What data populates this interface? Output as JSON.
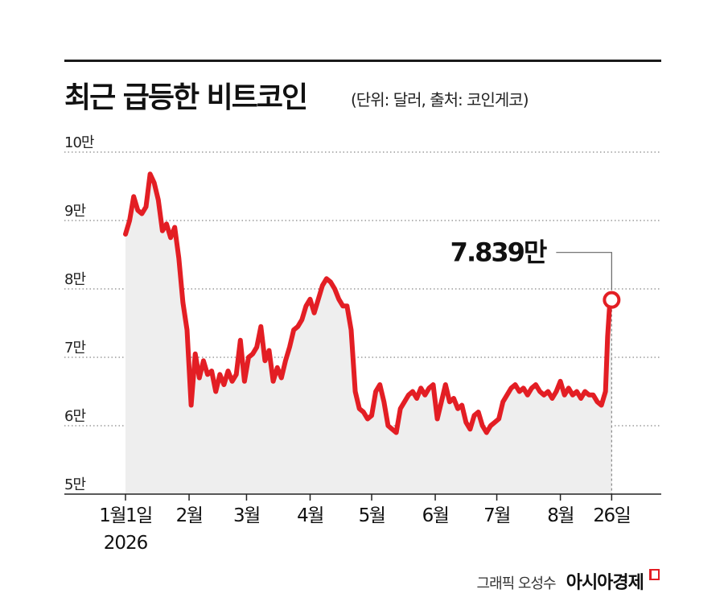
{
  "header": {
    "title": "최근 급등한 비트코인",
    "subtitle": "(단위: 달러, 출처: 코인게코)"
  },
  "chart_data": {
    "type": "line",
    "title": "최근 급등한 비트코인",
    "subtitle": "(단위: 달러, 출처: 코인게코)",
    "ylim": [
      50000,
      100000
    ],
    "y_ticks": [
      {
        "value": 100000,
        "label": "10만"
      },
      {
        "value": 90000,
        "label": "9만"
      },
      {
        "value": 80000,
        "label": "8만"
      },
      {
        "value": 70000,
        "label": "7만"
      },
      {
        "value": 60000,
        "label": "6만"
      },
      {
        "value": 50000,
        "label": "5만"
      }
    ],
    "x_ticks": [
      {
        "date": "2026-01-01",
        "label": "1월1일",
        "sublabel": "2026"
      },
      {
        "date": "2026-02-01",
        "label": "2월"
      },
      {
        "date": "2026-03-01",
        "label": "3월"
      },
      {
        "date": "2026-04-01",
        "label": "4월"
      },
      {
        "date": "2026-05-01",
        "label": "5월"
      },
      {
        "date": "2026-06-01",
        "label": "6월"
      },
      {
        "date": "2026-07-01",
        "label": "7월"
      },
      {
        "date": "2026-08-01",
        "label": "8월"
      },
      {
        "date": "2026-08-26",
        "label": "26일"
      }
    ],
    "grid": "dotted-horizontal",
    "line_color": "#e31e24",
    "area_color": "#eeeeee",
    "annotation": {
      "date": "2026-08-26",
      "value": 78390,
      "label": "7.839만"
    },
    "series": [
      {
        "values": [
          [
            "2026-01-01",
            88000
          ],
          [
            "2026-01-03",
            90000
          ],
          [
            "2026-01-05",
            93500
          ],
          [
            "2026-01-07",
            91500
          ],
          [
            "2026-01-09",
            91000
          ],
          [
            "2026-01-11",
            92000
          ],
          [
            "2026-01-13",
            96800
          ],
          [
            "2026-01-15",
            95500
          ],
          [
            "2026-01-17",
            93000
          ],
          [
            "2026-01-19",
            88500
          ],
          [
            "2026-01-21",
            89500
          ],
          [
            "2026-01-23",
            87500
          ],
          [
            "2026-01-25",
            89000
          ],
          [
            "2026-01-27",
            84500
          ],
          [
            "2026-01-29",
            78000
          ],
          [
            "2026-01-31",
            74000
          ],
          [
            "2026-02-02",
            63000
          ],
          [
            "2026-02-04",
            70500
          ],
          [
            "2026-02-06",
            67000
          ],
          [
            "2026-02-08",
            69500
          ],
          [
            "2026-02-10",
            67500
          ],
          [
            "2026-02-12",
            68000
          ],
          [
            "2026-02-14",
            65000
          ],
          [
            "2026-02-16",
            67500
          ],
          [
            "2026-02-18",
            66000
          ],
          [
            "2026-02-20",
            68000
          ],
          [
            "2026-02-22",
            66500
          ],
          [
            "2026-02-24",
            67500
          ],
          [
            "2026-02-26",
            72500
          ],
          [
            "2026-02-28",
            66500
          ],
          [
            "2026-03-02",
            70000
          ],
          [
            "2026-03-04",
            70500
          ],
          [
            "2026-03-06",
            71500
          ],
          [
            "2026-03-08",
            74500
          ],
          [
            "2026-03-10",
            69500
          ],
          [
            "2026-03-12",
            71000
          ],
          [
            "2026-03-14",
            66500
          ],
          [
            "2026-03-16",
            68500
          ],
          [
            "2026-03-18",
            67000
          ],
          [
            "2026-03-20",
            69500
          ],
          [
            "2026-03-22",
            71500
          ],
          [
            "2026-03-24",
            74000
          ],
          [
            "2026-03-26",
            74500
          ],
          [
            "2026-03-28",
            75500
          ],
          [
            "2026-03-30",
            77500
          ],
          [
            "2026-04-01",
            78500
          ],
          [
            "2026-04-03",
            76500
          ],
          [
            "2026-04-05",
            78500
          ],
          [
            "2026-04-07",
            80500
          ],
          [
            "2026-04-09",
            81500
          ],
          [
            "2026-04-11",
            81000
          ],
          [
            "2026-04-13",
            80000
          ],
          [
            "2026-04-15",
            78500
          ],
          [
            "2026-04-17",
            77500
          ],
          [
            "2026-04-19",
            77500
          ],
          [
            "2026-04-21",
            74000
          ],
          [
            "2026-04-23",
            65000
          ],
          [
            "2026-04-25",
            62500
          ],
          [
            "2026-04-27",
            62000
          ],
          [
            "2026-04-29",
            61000
          ],
          [
            "2026-05-01",
            61500
          ],
          [
            "2026-05-03",
            65000
          ],
          [
            "2026-05-05",
            66000
          ],
          [
            "2026-05-07",
            63500
          ],
          [
            "2026-05-09",
            60000
          ],
          [
            "2026-05-11",
            59500
          ],
          [
            "2026-05-13",
            59000
          ],
          [
            "2026-05-15",
            62500
          ],
          [
            "2026-05-17",
            63500
          ],
          [
            "2026-05-19",
            64500
          ],
          [
            "2026-05-21",
            65000
          ],
          [
            "2026-05-23",
            64000
          ],
          [
            "2026-05-25",
            65500
          ],
          [
            "2026-05-27",
            64500
          ],
          [
            "2026-05-29",
            65500
          ],
          [
            "2026-05-31",
            66000
          ],
          [
            "2026-06-02",
            61000
          ],
          [
            "2026-06-04",
            63500
          ],
          [
            "2026-06-06",
            66000
          ],
          [
            "2026-06-08",
            63500
          ],
          [
            "2026-06-10",
            64000
          ],
          [
            "2026-06-12",
            62500
          ],
          [
            "2026-06-14",
            63000
          ],
          [
            "2026-06-16",
            60500
          ],
          [
            "2026-06-18",
            59500
          ],
          [
            "2026-06-20",
            61500
          ],
          [
            "2026-06-22",
            62000
          ],
          [
            "2026-06-24",
            60000
          ],
          [
            "2026-06-26",
            59000
          ],
          [
            "2026-06-28",
            60000
          ],
          [
            "2026-06-30",
            60500
          ],
          [
            "2026-07-02",
            61000
          ],
          [
            "2026-07-04",
            63500
          ],
          [
            "2026-07-06",
            64500
          ],
          [
            "2026-07-08",
            65500
          ],
          [
            "2026-07-10",
            66000
          ],
          [
            "2026-07-12",
            65000
          ],
          [
            "2026-07-14",
            65500
          ],
          [
            "2026-07-16",
            64500
          ],
          [
            "2026-07-18",
            65500
          ],
          [
            "2026-07-20",
            66000
          ],
          [
            "2026-07-22",
            65000
          ],
          [
            "2026-07-24",
            64500
          ],
          [
            "2026-07-26",
            65000
          ],
          [
            "2026-07-28",
            64000
          ],
          [
            "2026-07-30",
            65000
          ],
          [
            "2026-08-01",
            66500
          ],
          [
            "2026-08-03",
            64500
          ],
          [
            "2026-08-05",
            65500
          ],
          [
            "2026-08-07",
            64500
          ],
          [
            "2026-08-09",
            65000
          ],
          [
            "2026-08-11",
            64000
          ],
          [
            "2026-08-13",
            65000
          ],
          [
            "2026-08-15",
            64500
          ],
          [
            "2026-08-17",
            64500
          ],
          [
            "2026-08-19",
            63500
          ],
          [
            "2026-08-21",
            63000
          ],
          [
            "2026-08-23",
            65000
          ],
          [
            "2026-08-24",
            73000
          ],
          [
            "2026-08-25",
            77500
          ],
          [
            "2026-08-26",
            78390
          ]
        ]
      }
    ]
  },
  "footer": {
    "credit": "그래픽 오성수",
    "logo": "아시아경제"
  }
}
